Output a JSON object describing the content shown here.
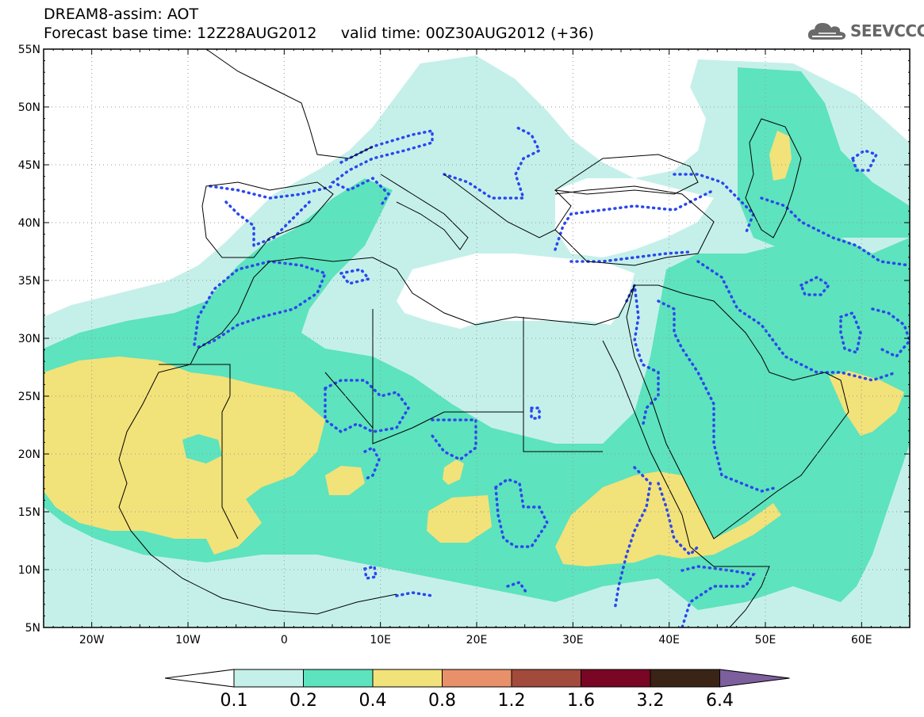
{
  "header": {
    "title": "DREAM8-assim: AOT",
    "base_time_label": "Forecast base time: 12Z28AUG2012",
    "valid_time_label": "valid time: 00Z30AUG2012 (+36)"
  },
  "logo": {
    "text": "SEEVCCC",
    "icon": "cloud-icon"
  },
  "map": {
    "lat_labels": [
      "55N",
      "50N",
      "45N",
      "40N",
      "35N",
      "30N",
      "25N",
      "20N",
      "15N",
      "10N",
      "5N"
    ],
    "lon_labels": [
      "20W",
      "10W",
      "0",
      "10E",
      "20E",
      "30E",
      "40E",
      "50E",
      "60E"
    ],
    "colors": {
      "c01": "#c5f0ea",
      "c02": "#5de3bd",
      "c04": "#f2e27a",
      "dotted": "#2b47ee"
    }
  },
  "colorbar": {
    "ticks": [
      "0.1",
      "0.2",
      "0.4",
      "0.8",
      "1.2",
      "1.6",
      "3.2",
      "6.4"
    ],
    "colors": [
      "#c5f0ea",
      "#5de3bd",
      "#f2e27a",
      "#e8906a",
      "#a24a3c",
      "#780624",
      "#3a2416",
      "#7c5f9c"
    ],
    "low_end_color": "#ffffff"
  }
}
